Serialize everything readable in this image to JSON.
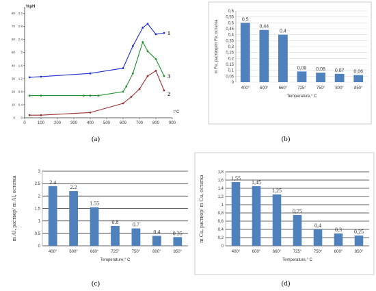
{
  "chart_data": [
    {
      "id": "a",
      "type": "line",
      "caption": "(a)",
      "ylabel": "%pH",
      "xlabel": "t°C",
      "x_ticks": [
        "0",
        "100",
        "200",
        "300",
        "400",
        "500",
        "600",
        "700",
        "800",
        "900"
      ],
      "y_ticks_left": [
        "0",
        "10",
        "20",
        "30",
        "40",
        "50",
        "60",
        "70",
        "80"
      ],
      "y_ticks_right": [
        "0",
        "0.4",
        "0.8",
        "1.2",
        "1.6",
        "2",
        "2.4",
        "2.8",
        "3.2"
      ],
      "xlim": [
        0,
        900
      ],
      "ylim": [
        0,
        85
      ],
      "grid": false,
      "series": [
        {
          "name": "1",
          "color": "#1f2fcf",
          "x": [
            30,
            100,
            400,
            600,
            660,
            720,
            750,
            800,
            850
          ],
          "y": [
            31,
            31.5,
            34,
            38,
            55,
            69,
            72,
            64,
            65
          ]
        },
        {
          "name": "3",
          "color": "#1f8f2f",
          "x": [
            30,
            100,
            360,
            400,
            450,
            600,
            620,
            660,
            720,
            750,
            800,
            850
          ],
          "y": [
            17,
            17,
            17,
            17,
            17,
            20,
            24,
            34,
            58,
            51,
            45,
            32
          ]
        },
        {
          "name": "2",
          "color": "#9a2f2f",
          "x": [
            30,
            100,
            400,
            600,
            650,
            700,
            750,
            800,
            850
          ],
          "y": [
            2,
            2,
            4,
            11,
            16,
            22,
            32,
            36,
            21
          ]
        }
      ]
    },
    {
      "id": "b",
      "type": "bar",
      "caption": "(b)",
      "ylabel": "m Fe, раствор/m Fe, остатка",
      "xlabel": "Temperature,° C",
      "categories": [
        "400°",
        "600°",
        "660°",
        "725°",
        "750°",
        "800°",
        "850°"
      ],
      "values": [
        0.5,
        0.44,
        0.4,
        0.09,
        0.08,
        0.07,
        0.06
      ],
      "labels": [
        "0,5",
        "0,44",
        "0,4",
        "0,09",
        "0,08",
        "0,07",
        "0,06"
      ],
      "y_ticks": [
        "0",
        "0,05",
        "0,1",
        "0,15",
        "0,2",
        "0,25",
        "0,3",
        "0,35",
        "0,4",
        "0,45",
        "0,5",
        "0,55",
        "0,6"
      ],
      "ylim": [
        0,
        0.6
      ],
      "grid": true,
      "color": "#4f81bd"
    },
    {
      "id": "c",
      "type": "bar",
      "caption": "(c)",
      "ylabel": "m Al, раствор/ m Al, остатка",
      "xlabel": "Temperature,° C",
      "categories": [
        "400°",
        "600°",
        "660°",
        "725°",
        "750°",
        "800°",
        "850°"
      ],
      "values": [
        2.4,
        2.2,
        1.55,
        0.8,
        0.7,
        0.4,
        0.35
      ],
      "labels": [
        "2.4",
        "2.2",
        "1.55",
        "0.8",
        "0.7",
        "0.4",
        "0.35"
      ],
      "y_ticks": [
        "0",
        "0.5",
        "1",
        "1.5",
        "2",
        "2.5",
        "3"
      ],
      "ylim": [
        0,
        3
      ],
      "grid": true,
      "color": "#4f81bd"
    },
    {
      "id": "d",
      "type": "bar",
      "caption": "(d)",
      "ylabel": "m Cu, раствор/ m Cu, остатка",
      "xlabel": "Temperature,° C",
      "categories": [
        "400°",
        "600°",
        "660°",
        "725°",
        "750°",
        "800°",
        "850°"
      ],
      "values": [
        1.55,
        1.45,
        1.25,
        0.75,
        0.4,
        0.3,
        0.25
      ],
      "labels": [
        "1,55",
        "1,45",
        "1,25",
        "0,75",
        "0,4",
        "0,3",
        "0,25"
      ],
      "y_ticks": [
        "0",
        "0,2",
        "0,4",
        "0,6",
        "0,8",
        "1",
        "1,2",
        "1,4",
        "1,6",
        "1,8"
      ],
      "ylim": [
        0,
        1.8
      ],
      "grid": true,
      "color": "#4f81bd"
    }
  ]
}
